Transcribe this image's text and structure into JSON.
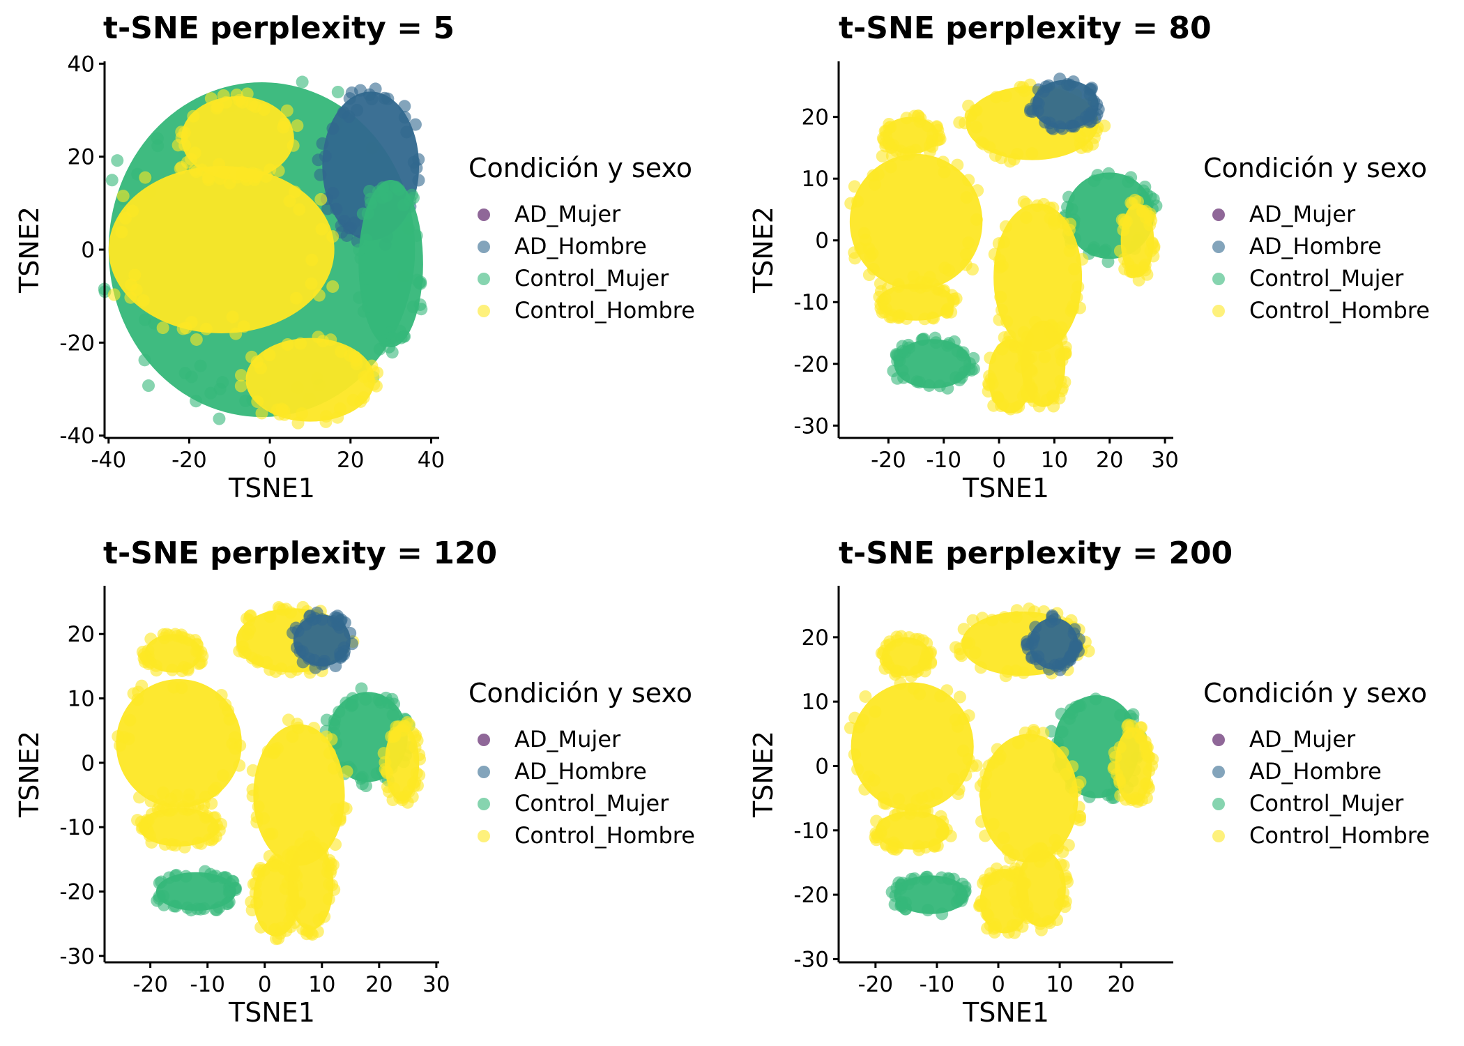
{
  "legend": {
    "title": "Condición y sexo",
    "entries": [
      {
        "label": "AD_Mujer",
        "color": "#440154"
      },
      {
        "label": "AD_Hombre",
        "color": "#31688E"
      },
      {
        "label": "Control_Mujer",
        "color": "#35B779"
      },
      {
        "label": "Control_Hombre",
        "color": "#FDE725"
      }
    ]
  },
  "chart_data": [
    {
      "type": "scatter",
      "title": "t-SNE perplexity = 5",
      "xlabel": "TSNE1",
      "ylabel": "TSNE2",
      "xlim": [
        -41,
        42
      ],
      "ylim": [
        -40.5,
        40.5
      ],
      "xticks": [
        -40,
        -20,
        0,
        20,
        40
      ],
      "yticks": [
        -40,
        -20,
        0,
        20,
        40
      ],
      "series": [
        {
          "name": "AD_Mujer",
          "color": "#440154"
        },
        {
          "name": "AD_Hombre",
          "color": "#31688E"
        },
        {
          "name": "Control_Mujer",
          "color": "#35B779"
        },
        {
          "name": "Control_Hombre",
          "color": "#FDE725"
        }
      ],
      "clusters": [
        {
          "cx": -2,
          "cy": 0,
          "rx": 38,
          "ry": 36,
          "color": "#35B779"
        },
        {
          "cx": 25,
          "cy": 18,
          "rx": 12,
          "ry": 16,
          "color": "#31688E"
        },
        {
          "cx": -12,
          "cy": 0,
          "rx": 28,
          "ry": 18,
          "color": "#FDE725"
        },
        {
          "cx": -8,
          "cy": 24,
          "rx": 14,
          "ry": 9,
          "color": "#FDE725"
        },
        {
          "cx": 10,
          "cy": -28,
          "rx": 16,
          "ry": 9,
          "color": "#FDE725"
        },
        {
          "cx": 30,
          "cy": -3,
          "rx": 8,
          "ry": 18,
          "color": "#35B779"
        }
      ]
    },
    {
      "type": "scatter",
      "title": "t-SNE perplexity = 80",
      "xlabel": "TSNE1",
      "ylabel": "TSNE2",
      "xlim": [
        -29,
        31.5
      ],
      "ylim": [
        -32,
        29
      ],
      "xticks": [
        -20,
        -10,
        0,
        10,
        20,
        30
      ],
      "yticks": [
        -30,
        -20,
        -10,
        0,
        10,
        20
      ],
      "series": [
        {
          "name": "AD_Mujer",
          "color": "#440154"
        },
        {
          "name": "AD_Hombre",
          "color": "#31688E"
        },
        {
          "name": "Control_Mujer",
          "color": "#35B779"
        },
        {
          "name": "Control_Hombre",
          "color": "#FDE725"
        }
      ],
      "clusters": [
        {
          "cx": -15,
          "cy": 3,
          "rx": 12,
          "ry": 11,
          "color": "#FDE725"
        },
        {
          "cx": 6,
          "cy": 19,
          "rx": 12,
          "ry": 6,
          "color": "#FDE725"
        },
        {
          "cx": 12,
          "cy": 22,
          "rx": 6,
          "ry": 4,
          "color": "#31688E"
        },
        {
          "cx": 20,
          "cy": 4,
          "rx": 8,
          "ry": 7,
          "color": "#35B779"
        },
        {
          "cx": 7,
          "cy": -6,
          "rx": 8,
          "ry": 12,
          "color": "#FDE725"
        },
        {
          "cx": -16,
          "cy": 17,
          "rx": 5,
          "ry": 3,
          "color": "#FDE725"
        },
        {
          "cx": -15,
          "cy": -10,
          "rx": 7,
          "ry": 3,
          "color": "#FDE725"
        },
        {
          "cx": -12,
          "cy": -20,
          "rx": 7,
          "ry": 4,
          "color": "#35B779"
        },
        {
          "cx": 2,
          "cy": -22,
          "rx": 4,
          "ry": 6,
          "color": "#FDE725"
        },
        {
          "cx": 8,
          "cy": -20,
          "rx": 4,
          "ry": 7,
          "color": "#FDE725"
        },
        {
          "cx": 25,
          "cy": 0,
          "rx": 3,
          "ry": 6,
          "color": "#FDE725"
        }
      ]
    },
    {
      "type": "scatter",
      "title": "t-SNE perplexity = 120",
      "xlabel": "TSNE1",
      "ylabel": "TSNE2",
      "xlim": [
        -28,
        30.5
      ],
      "ylim": [
        -31,
        27.5
      ],
      "xticks": [
        -20,
        -10,
        0,
        10,
        20,
        30
      ],
      "yticks": [
        -30,
        -20,
        -10,
        0,
        10,
        20
      ],
      "series": [
        {
          "name": "AD_Mujer",
          "color": "#440154"
        },
        {
          "name": "AD_Hombre",
          "color": "#31688E"
        },
        {
          "name": "Control_Mujer",
          "color": "#35B779"
        },
        {
          "name": "Control_Hombre",
          "color": "#FDE725"
        }
      ],
      "clusters": [
        {
          "cx": -15,
          "cy": 3,
          "rx": 11,
          "ry": 10,
          "color": "#FDE725"
        },
        {
          "cx": 5,
          "cy": 19,
          "rx": 10,
          "ry": 5,
          "color": "#FDE725"
        },
        {
          "cx": 10,
          "cy": 19,
          "rx": 5,
          "ry": 4,
          "color": "#31688E"
        },
        {
          "cx": 18,
          "cy": 4,
          "rx": 7,
          "ry": 7,
          "color": "#35B779"
        },
        {
          "cx": 6,
          "cy": -5,
          "rx": 8,
          "ry": 11,
          "color": "#FDE725"
        },
        {
          "cx": -16,
          "cy": 17,
          "rx": 5,
          "ry": 3,
          "color": "#FDE725"
        },
        {
          "cx": -15,
          "cy": -10,
          "rx": 7,
          "ry": 3,
          "color": "#FDE725"
        },
        {
          "cx": -12,
          "cy": -20,
          "rx": 7,
          "ry": 3,
          "color": "#35B779"
        },
        {
          "cx": 2,
          "cy": -21,
          "rx": 4,
          "ry": 6,
          "color": "#FDE725"
        },
        {
          "cx": 8,
          "cy": -19,
          "rx": 4,
          "ry": 7,
          "color": "#FDE725"
        },
        {
          "cx": 24,
          "cy": 0,
          "rx": 3,
          "ry": 6,
          "color": "#FDE725"
        }
      ]
    },
    {
      "type": "scatter",
      "title": "t-SNE perplexity = 200",
      "xlabel": "TSNE1",
      "ylabel": "TSNE2",
      "xlim": [
        -26,
        28.5
      ],
      "ylim": [
        -30.5,
        28
      ],
      "xticks": [
        -20,
        -10,
        0,
        10,
        20
      ],
      "yticks": [
        -30,
        -20,
        -10,
        0,
        10,
        20
      ],
      "series": [
        {
          "name": "AD_Mujer",
          "color": "#440154"
        },
        {
          "name": "AD_Hombre",
          "color": "#31688E"
        },
        {
          "name": "Control_Mujer",
          "color": "#35B779"
        },
        {
          "name": "Control_Hombre",
          "color": "#FDE725"
        }
      ],
      "clusters": [
        {
          "cx": -14,
          "cy": 3,
          "rx": 10,
          "ry": 10,
          "color": "#FDE725"
        },
        {
          "cx": 4,
          "cy": 19,
          "rx": 10,
          "ry": 5,
          "color": "#FDE725"
        },
        {
          "cx": 9,
          "cy": 19,
          "rx": 4,
          "ry": 4,
          "color": "#31688E"
        },
        {
          "cx": 16,
          "cy": 3,
          "rx": 7,
          "ry": 8,
          "color": "#35B779"
        },
        {
          "cx": 5,
          "cy": -5,
          "rx": 8,
          "ry": 10,
          "color": "#FDE725"
        },
        {
          "cx": -15,
          "cy": 17,
          "rx": 4,
          "ry": 3,
          "color": "#FDE725"
        },
        {
          "cx": -14,
          "cy": -10,
          "rx": 6,
          "ry": 3,
          "color": "#FDE725"
        },
        {
          "cx": -11,
          "cy": -20,
          "rx": 6,
          "ry": 3,
          "color": "#35B779"
        },
        {
          "cx": 1,
          "cy": -21,
          "rx": 4,
          "ry": 5,
          "color": "#FDE725"
        },
        {
          "cx": 7,
          "cy": -19,
          "rx": 4,
          "ry": 6,
          "color": "#FDE725"
        },
        {
          "cx": 22,
          "cy": 0,
          "rx": 3,
          "ry": 6,
          "color": "#FDE725"
        }
      ]
    }
  ]
}
